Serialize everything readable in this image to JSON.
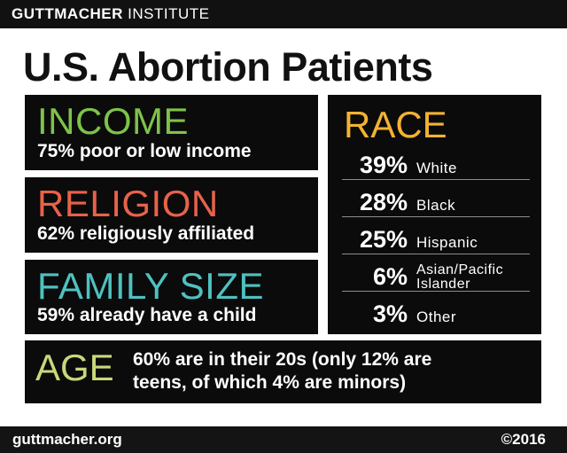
{
  "brand": {
    "bold": "GUTTMACHER",
    "light": "INSTITUTE"
  },
  "title": "U.S. Abortion Patients",
  "colors": {
    "income": "#7ec24a",
    "religion": "#e8624a",
    "family_size": "#4fc1c0",
    "race": "#f3b233",
    "age": "#c8d87a"
  },
  "income": {
    "heading": "INCOME",
    "text": "75% poor or low income"
  },
  "religion": {
    "heading": "RELIGION",
    "text": "62% religiously affiliated"
  },
  "family_size": {
    "heading": "FAMILY SIZE",
    "text": "59% already have a child"
  },
  "race": {
    "heading": "RACE",
    "rows": [
      {
        "pct": "39%",
        "label": "White"
      },
      {
        "pct": "28%",
        "label": "Black"
      },
      {
        "pct": "25%",
        "label": "Hispanic"
      },
      {
        "pct": "6%",
        "label_line1": "Asian/Pacific",
        "label_line2": "Islander"
      },
      {
        "pct": "3%",
        "label": "Other"
      }
    ]
  },
  "age": {
    "heading": "AGE",
    "line1": "60% are in their 20s (only 12% are",
    "line2": "teens, of which 4% are minors)"
  },
  "footer": {
    "url": "guttmacher.org",
    "year": "©2016"
  }
}
